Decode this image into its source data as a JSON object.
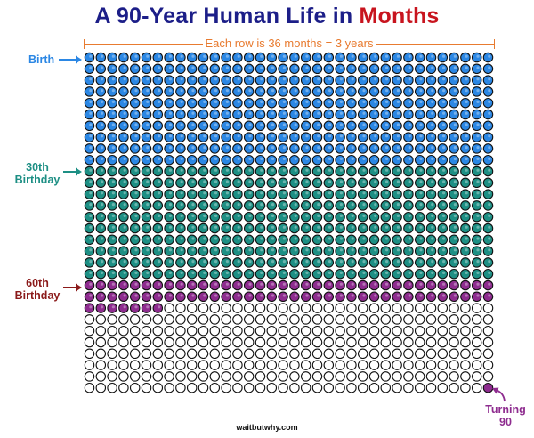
{
  "header": {
    "title_prefix": "A 90-Year Human Life in ",
    "title_highlight": "Months"
  },
  "row_caption": "Each row is 36 months = 3 years",
  "labels": {
    "birth": "Birth",
    "thirtieth_line1": "30th",
    "thirtieth_line2": "Birthday",
    "sixtieth_line1": "60th",
    "sixtieth_line2": "Birthday",
    "turning_line1": "Turning",
    "turning_line2": "90"
  },
  "footer": "waitbutwhy.com",
  "grid": {
    "columns": 36,
    "rows": 30,
    "total_months": 1080,
    "filled_months": 799,
    "segments": [
      {
        "name": "Birth to 30th Birthday",
        "months": 360,
        "color": "#2b87e4"
      },
      {
        "name": "30th to 60th Birthday",
        "months": 360,
        "color": "#1d8f84"
      },
      {
        "name": "After 60th Birthday",
        "months": 79,
        "color": "#8e2c8f"
      }
    ],
    "final_month_color": "#8e2c8f",
    "empty_color": "#ffffff"
  },
  "colors": {
    "title": "#1c1e88",
    "highlight": "#c8141e",
    "caption": "#e87b30",
    "birth": "#2b87e4",
    "thirtieth": "#1d8f84",
    "sixtieth": "#8b1a1a",
    "turning": "#8e2c8f"
  }
}
